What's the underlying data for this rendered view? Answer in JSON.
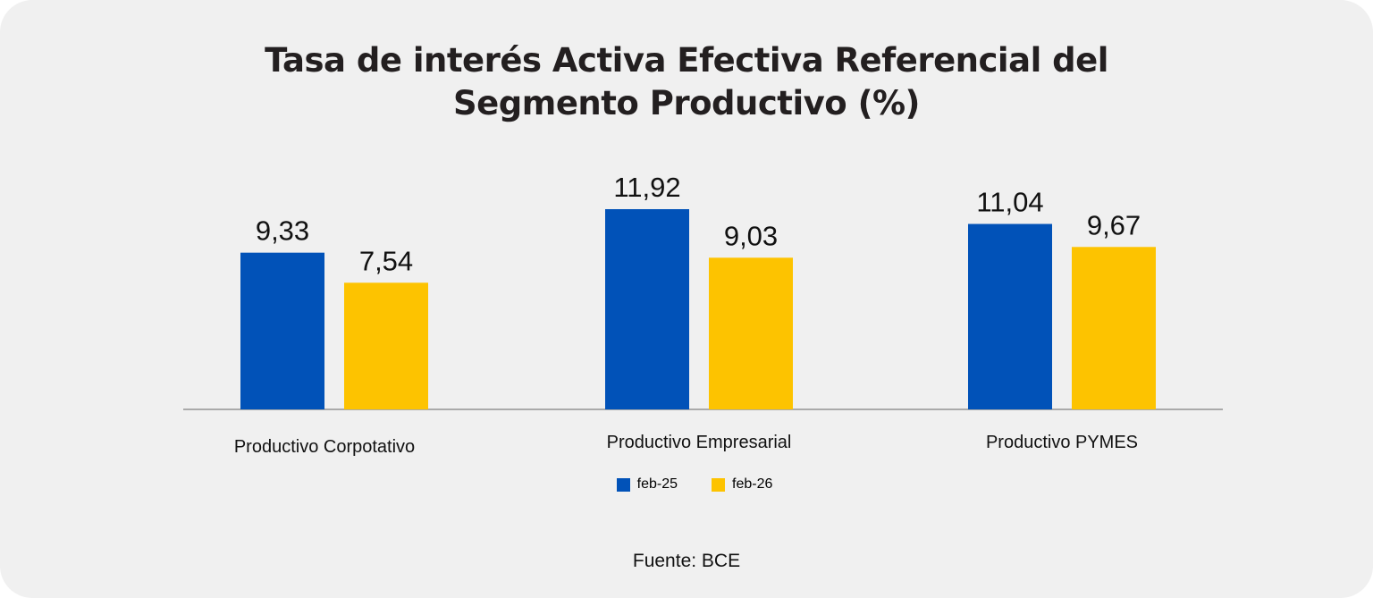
{
  "title_line1": "Tasa de interés Activa Efectiva Referencial del",
  "title_line2": "Segmento Productivo (%)",
  "source": "Fuente: BCE",
  "colors": {
    "feb25": "#0152b8",
    "feb26": "#fdc300",
    "axis": "#808080",
    "background": "#f0f0f0"
  },
  "chart_data": {
    "type": "bar",
    "title": "Tasa de interés Activa Efectiva Referencial del Segmento Productivo (%)",
    "categories": [
      "Productivo Corpotativo",
      "Productivo Empresarial",
      "Productivo PYMES"
    ],
    "series": [
      {
        "name": "feb-25",
        "values": [
          9.33,
          11.92,
          11.04
        ],
        "labels": [
          "9,33",
          "11,92",
          "11,04"
        ]
      },
      {
        "name": "feb-26",
        "values": [
          7.54,
          9.03,
          9.67
        ],
        "labels": [
          "7,54",
          "9,03",
          "9,67"
        ]
      }
    ],
    "xlabel": "",
    "ylabel": "",
    "ylim": [
      0,
      11.92
    ],
    "grid": false,
    "legend": "bottom-center",
    "data_labels": true
  }
}
